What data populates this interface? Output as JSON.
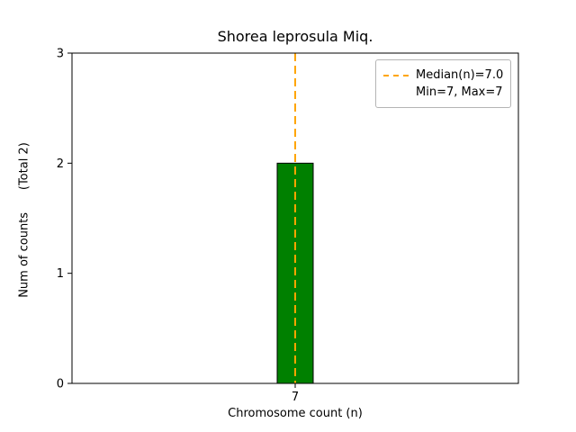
{
  "title": "Shorea leprosula Miq.",
  "axes": {
    "xlabel": "Chromosome count (n)",
    "ylabel": "Num of counts      (Total 2)"
  },
  "legend": {
    "entries": [
      {
        "label": "Median(n)=7.0",
        "sample": "dashed-line",
        "color": "#FFA500"
      },
      {
        "label": "Min=7, Max=7",
        "sample": "none"
      }
    ]
  },
  "chart_data": {
    "type": "bar",
    "title": "Shorea leprosula Miq.",
    "xlabel": "Chromosome count (n)",
    "ylabel": "Num of counts (Total 2)",
    "categories": [
      "7"
    ],
    "values": [
      2
    ],
    "total_counts": 2,
    "ylim": [
      0,
      3
    ],
    "yticks": [
      0,
      1,
      2,
      3
    ],
    "bar_color": "#008000",
    "bar_edge_color": "#000000",
    "median_line": {
      "at_category": "7",
      "median": 7.0,
      "min": 7,
      "max": 7,
      "color": "#FFA500",
      "style": "dashed"
    },
    "legend_position": "upper right",
    "grid": false
  }
}
